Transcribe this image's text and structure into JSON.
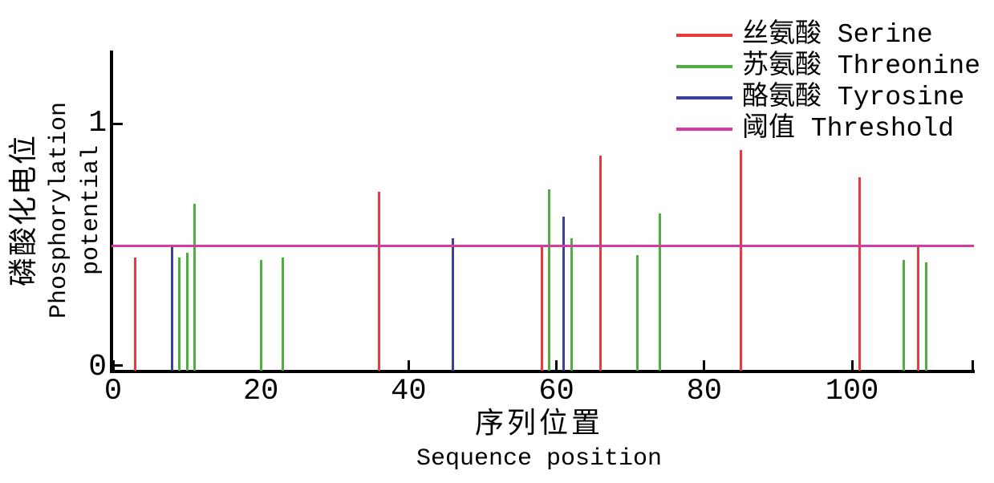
{
  "axes": {
    "x": {
      "label_zh": "序列位置",
      "label_en": "Sequence position",
      "ticks": [
        0,
        20,
        40,
        60,
        80,
        100
      ],
      "min": 0,
      "max": 116.5
    },
    "y": {
      "label_zh": "磷酸化电位",
      "label_en": "Phosphorylation potential",
      "ticks": [
        0,
        1
      ],
      "min": 0,
      "max": 1.3
    }
  },
  "legend": {
    "items": [
      {
        "id": "serine",
        "label": "丝氨酸 Serine",
        "color": "#e53a40"
      },
      {
        "id": "threonine",
        "label": "苏氨酸 Threonine",
        "color": "#4bb03c"
      },
      {
        "id": "tyrosine",
        "label": "酪氨酸 Tyrosine",
        "color": "#3a3fa0"
      },
      {
        "id": "threshold",
        "label": "阈值 Threshold",
        "color": "#d639a2"
      }
    ]
  },
  "chart_data": {
    "type": "stem",
    "title": "",
    "xlabel": "序列位置 Sequence position",
    "ylabel": "磷酸化电位 Phosphorylation potential",
    "xlim": [
      0,
      116.5
    ],
    "ylim": [
      0,
      1.3
    ],
    "grid": false,
    "legend_position": "top-right",
    "threshold": {
      "label": "阈值 Threshold",
      "value": 0.5,
      "color": "#d639a2"
    },
    "series": [
      {
        "name": "丝氨酸 Serine",
        "id": "serine",
        "color": "#e53a40",
        "points": [
          [
            3,
            0.45
          ],
          [
            36,
            0.72
          ],
          [
            58,
            0.5
          ],
          [
            66,
            0.87
          ],
          [
            85,
            0.89
          ],
          [
            101,
            0.78
          ],
          [
            109,
            0.5
          ]
        ]
      },
      {
        "name": "苏氨酸 Threonine",
        "id": "threonine",
        "color": "#4bb03c",
        "points": [
          [
            9,
            0.45
          ],
          [
            10,
            0.47
          ],
          [
            11,
            0.67
          ],
          [
            20,
            0.44
          ],
          [
            23,
            0.45
          ],
          [
            59,
            0.73
          ],
          [
            62,
            0.53
          ],
          [
            71,
            0.46
          ],
          [
            74,
            0.63
          ],
          [
            107,
            0.44
          ],
          [
            110,
            0.43
          ]
        ]
      },
      {
        "name": "酪氨酸 Tyrosine",
        "id": "tyrosine",
        "color": "#3a3fa0",
        "points": [
          [
            8,
            0.5
          ],
          [
            46,
            0.53
          ],
          [
            61,
            0.62
          ]
        ]
      }
    ]
  }
}
